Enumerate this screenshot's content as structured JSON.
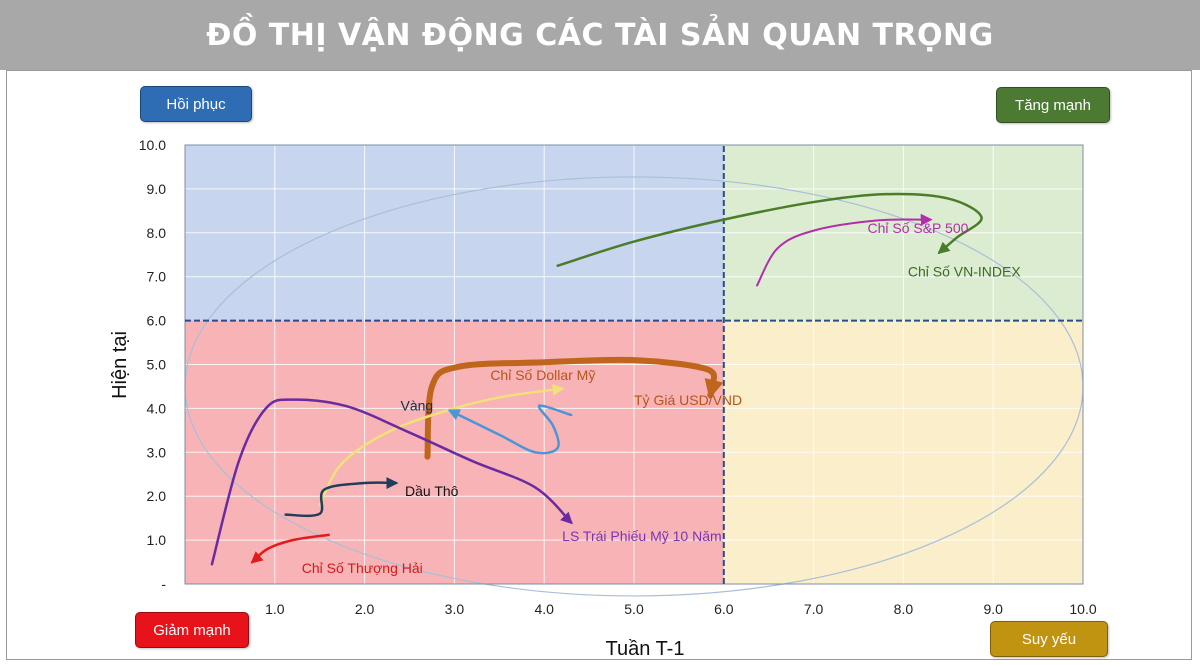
{
  "header": {
    "title": "ĐỒ THỊ VẬN ĐỘNG CÁC TÀI SẢN QUAN TRỌNG"
  },
  "quadrants": {
    "top_left": "Hồi phục",
    "top_right": "Tăng mạnh",
    "bottom_left": "Giảm mạnh",
    "bottom_right": "Suy yếu"
  },
  "colors": {
    "q_top_left": "#c7d5ee",
    "q_top_right": "#dcecd0",
    "q_bottom_left": "#f7b3b6",
    "q_bottom_right": "#fbeecb"
  },
  "chart_data": {
    "type": "line",
    "title": "",
    "xlabel": "Tuần T-1",
    "ylabel": "Hiện tại",
    "xlim": [
      0,
      10
    ],
    "ylim": [
      0,
      10
    ],
    "x_ticks": [
      "1.0",
      "2.0",
      "3.0",
      "4.0",
      "5.0",
      "6.0",
      "7.0",
      "8.0",
      "9.0",
      "10.0"
    ],
    "y_ticks": [
      "-",
      "1.0",
      "2.0",
      "3.0",
      "4.0",
      "5.0",
      "6.0",
      "7.0",
      "8.0",
      "9.0",
      "10.0"
    ],
    "divider": {
      "x": 6.0,
      "y": 6.0
    },
    "grid": true,
    "series": [
      {
        "name": "Chỉ Số VN-INDEX",
        "color": "#4a7d2a",
        "width": 2.5,
        "points": [
          [
            4.15,
            7.25
          ],
          [
            5.0,
            7.8
          ],
          [
            6.0,
            8.3
          ],
          [
            7.0,
            8.7
          ],
          [
            7.8,
            8.88
          ],
          [
            8.5,
            8.78
          ],
          [
            8.87,
            8.35
          ],
          [
            8.6,
            7.9
          ],
          [
            8.4,
            7.55
          ]
        ],
        "label_at": [
          8.05,
          7.0
        ],
        "label_color": "#3d6b22"
      },
      {
        "name": "Chỉ Số S&P 500",
        "color": "#b12fa8",
        "width": 2,
        "points": [
          [
            6.37,
            6.8
          ],
          [
            6.6,
            7.65
          ],
          [
            7.0,
            8.05
          ],
          [
            7.7,
            8.28
          ],
          [
            8.3,
            8.3
          ]
        ],
        "label_at": [
          7.6,
          8.0
        ],
        "label_color": "#b12fa8"
      },
      {
        "name": "Tỷ Giá USD/VND",
        "color": "#c0651c",
        "width": 6,
        "points": [
          [
            2.7,
            2.9
          ],
          [
            2.75,
            4.5
          ],
          [
            3.05,
            4.95
          ],
          [
            4.0,
            5.05
          ],
          [
            5.0,
            5.1
          ],
          [
            5.8,
            4.9
          ],
          [
            5.88,
            4.55
          ],
          [
            5.85,
            4.3
          ]
        ],
        "label_at": [
          5.0,
          4.08
        ],
        "label_color": "#b5561a"
      },
      {
        "name": "Vàng",
        "color": "#f2e079",
        "width": 2.5,
        "points": [
          [
            1.5,
            1.8
          ],
          [
            1.75,
            2.75
          ],
          [
            2.3,
            3.5
          ],
          [
            3.0,
            4.0
          ],
          [
            3.5,
            4.25
          ],
          [
            4.0,
            4.4
          ],
          [
            4.2,
            4.45
          ]
        ],
        "label_at": [
          2.4,
          3.95
        ],
        "label_color": "#1a2a4a"
      },
      {
        "name": "Chỉ Số Dollar Mỹ",
        "color": "#4a96d6",
        "width": 2.5,
        "points": [
          [
            4.3,
            3.85
          ],
          [
            4.0,
            4.05
          ],
          [
            3.95,
            4.0
          ],
          [
            4.1,
            3.6
          ],
          [
            4.15,
            3.1
          ],
          [
            3.9,
            3.0
          ],
          [
            3.5,
            3.4
          ],
          [
            2.95,
            3.95
          ]
        ],
        "label_at": [
          3.4,
          4.65
        ],
        "label_color": "#b5561a"
      },
      {
        "name": "Dầu Thô",
        "color": "#1e3e5a",
        "width": 2.5,
        "points": [
          [
            1.12,
            1.58
          ],
          [
            1.5,
            1.6
          ],
          [
            1.55,
            2.15
          ],
          [
            2.0,
            2.3
          ],
          [
            2.35,
            2.3
          ]
        ],
        "label_at": [
          2.45,
          2.0
        ],
        "label_color": "#111111"
      },
      {
        "name": "LS Trái Phiếu Mỹ 10 Năm",
        "color": "#6a2aa0",
        "width": 2.5,
        "points": [
          [
            0.3,
            0.45
          ],
          [
            0.6,
            2.8
          ],
          [
            0.9,
            4.0
          ],
          [
            1.2,
            4.2
          ],
          [
            1.8,
            4.05
          ],
          [
            2.5,
            3.45
          ],
          [
            3.2,
            2.8
          ],
          [
            3.9,
            2.2
          ],
          [
            4.3,
            1.4
          ]
        ],
        "label_at": [
          4.2,
          0.98
        ],
        "label_color": "#7a36b2"
      },
      {
        "name": "Chỉ Số Thượng Hải",
        "color": "#e11c1c",
        "width": 2.5,
        "points": [
          [
            1.6,
            1.12
          ],
          [
            1.2,
            1.0
          ],
          [
            0.92,
            0.8
          ],
          [
            0.75,
            0.5
          ]
        ],
        "label_at": [
          1.3,
          0.25
        ],
        "label_color": "#d11c1c"
      }
    ]
  }
}
